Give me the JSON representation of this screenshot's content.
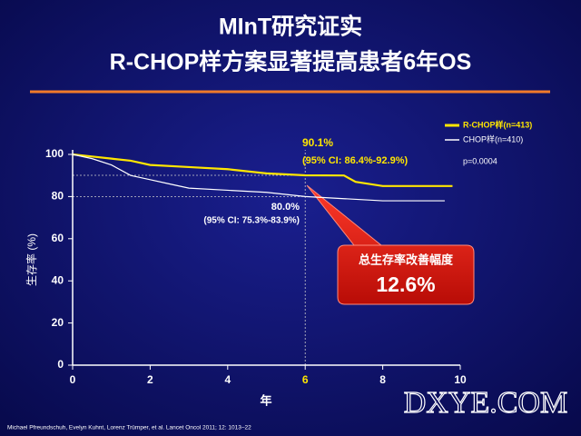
{
  "chart_data": {
    "type": "line",
    "title": "MInT研究证实",
    "subtitle": "R-CHOP样方案显著提高患者6年OS",
    "x_label": "年",
    "y_label": "生存率 (%)",
    "xlim": [
      0,
      10
    ],
    "xticks": [
      0,
      2,
      4,
      6,
      8,
      10
    ],
    "ylim": [
      0,
      100
    ],
    "yticks": [
      0,
      20,
      40,
      60,
      80,
      100
    ],
    "reference_x": 6,
    "series": [
      {
        "name": "R-CHOP样(n=413)",
        "color": "#ffe600",
        "x": [
          0,
          0.5,
          1,
          1.5,
          2,
          3,
          4,
          5,
          6,
          7,
          7.3,
          8,
          9.8
        ],
        "values": [
          100,
          99,
          98,
          97,
          95,
          94,
          93,
          91,
          90.1,
          90,
          87,
          85,
          85
        ]
      },
      {
        "name": "CHOP样(n=410)",
        "color": "#ffffff",
        "x": [
          0,
          0.5,
          1,
          1.5,
          2,
          2.5,
          3,
          4,
          5,
          6,
          7,
          8,
          9.6
        ],
        "values": [
          100,
          98,
          95,
          90,
          88,
          86,
          84,
          83,
          82,
          80,
          79,
          78,
          78
        ]
      }
    ],
    "highlights": [
      {
        "value": 90.1,
        "label": "90.1%",
        "ci": "(95% CI: 86.4%-92.9%)"
      },
      {
        "value": 80.0,
        "label": "80.0%",
        "ci": "(95% CI: 75.3%-83.9%)"
      }
    ],
    "p_value": "p=0.0004",
    "callout": {
      "title": "总生存率改善幅度",
      "value": "12.6%"
    },
    "citation": "Michael Pfreundschuh, Evelyn Kuhnt, Lorenz Trümper, et al. Lancet Oncol 2011; 12: 1013–22",
    "watermark": "DXYE.COM"
  }
}
